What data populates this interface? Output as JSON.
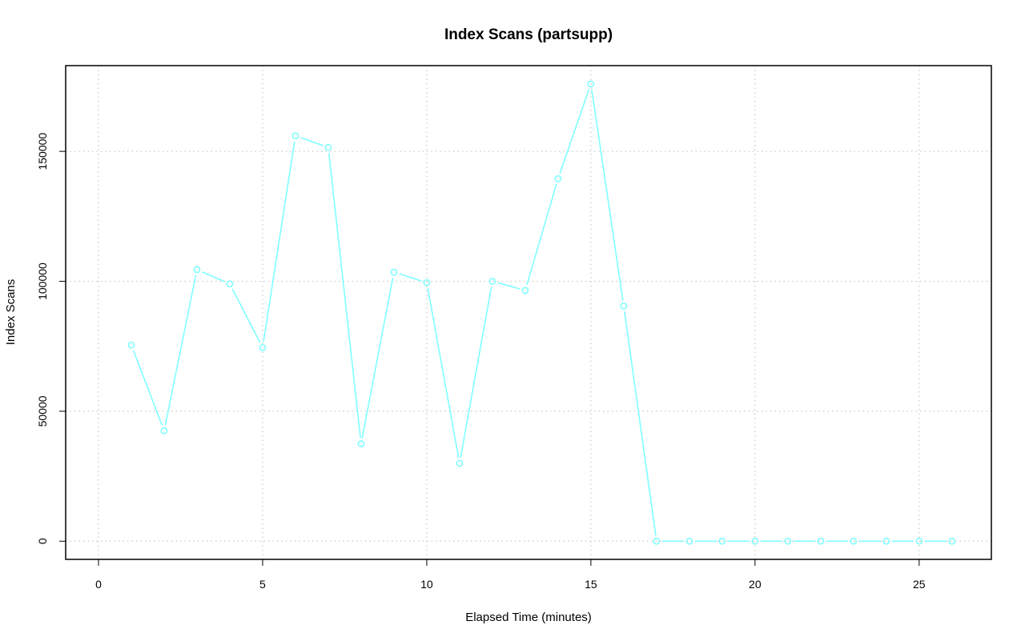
{
  "chart_data": {
    "type": "line",
    "title": "Index Scans (partsupp)",
    "xlabel": "Elapsed Time (minutes)",
    "ylabel": "Index Scans",
    "xlim": [
      -1,
      27.2
    ],
    "ylim": [
      -7000,
      183000
    ],
    "xticks": [
      0,
      5,
      10,
      15,
      20,
      25
    ],
    "yticks": [
      0,
      50000,
      100000,
      150000
    ],
    "grid": true,
    "series": [
      {
        "color": "#80ffff",
        "marker": "circle",
        "x": [
          1,
          2,
          3,
          4,
          5,
          6,
          7,
          8,
          9,
          10,
          11,
          12,
          13,
          14,
          15,
          16,
          17,
          18,
          19,
          20,
          21,
          22,
          23,
          24,
          25,
          26
        ],
        "values": [
          75500,
          42500,
          104500,
          99000,
          74500,
          156000,
          151500,
          37500,
          103500,
          99500,
          30000,
          100000,
          96500,
          139500,
          176000,
          90500,
          0,
          0,
          0,
          0,
          0,
          0,
          0,
          0,
          0,
          0
        ]
      }
    ]
  }
}
